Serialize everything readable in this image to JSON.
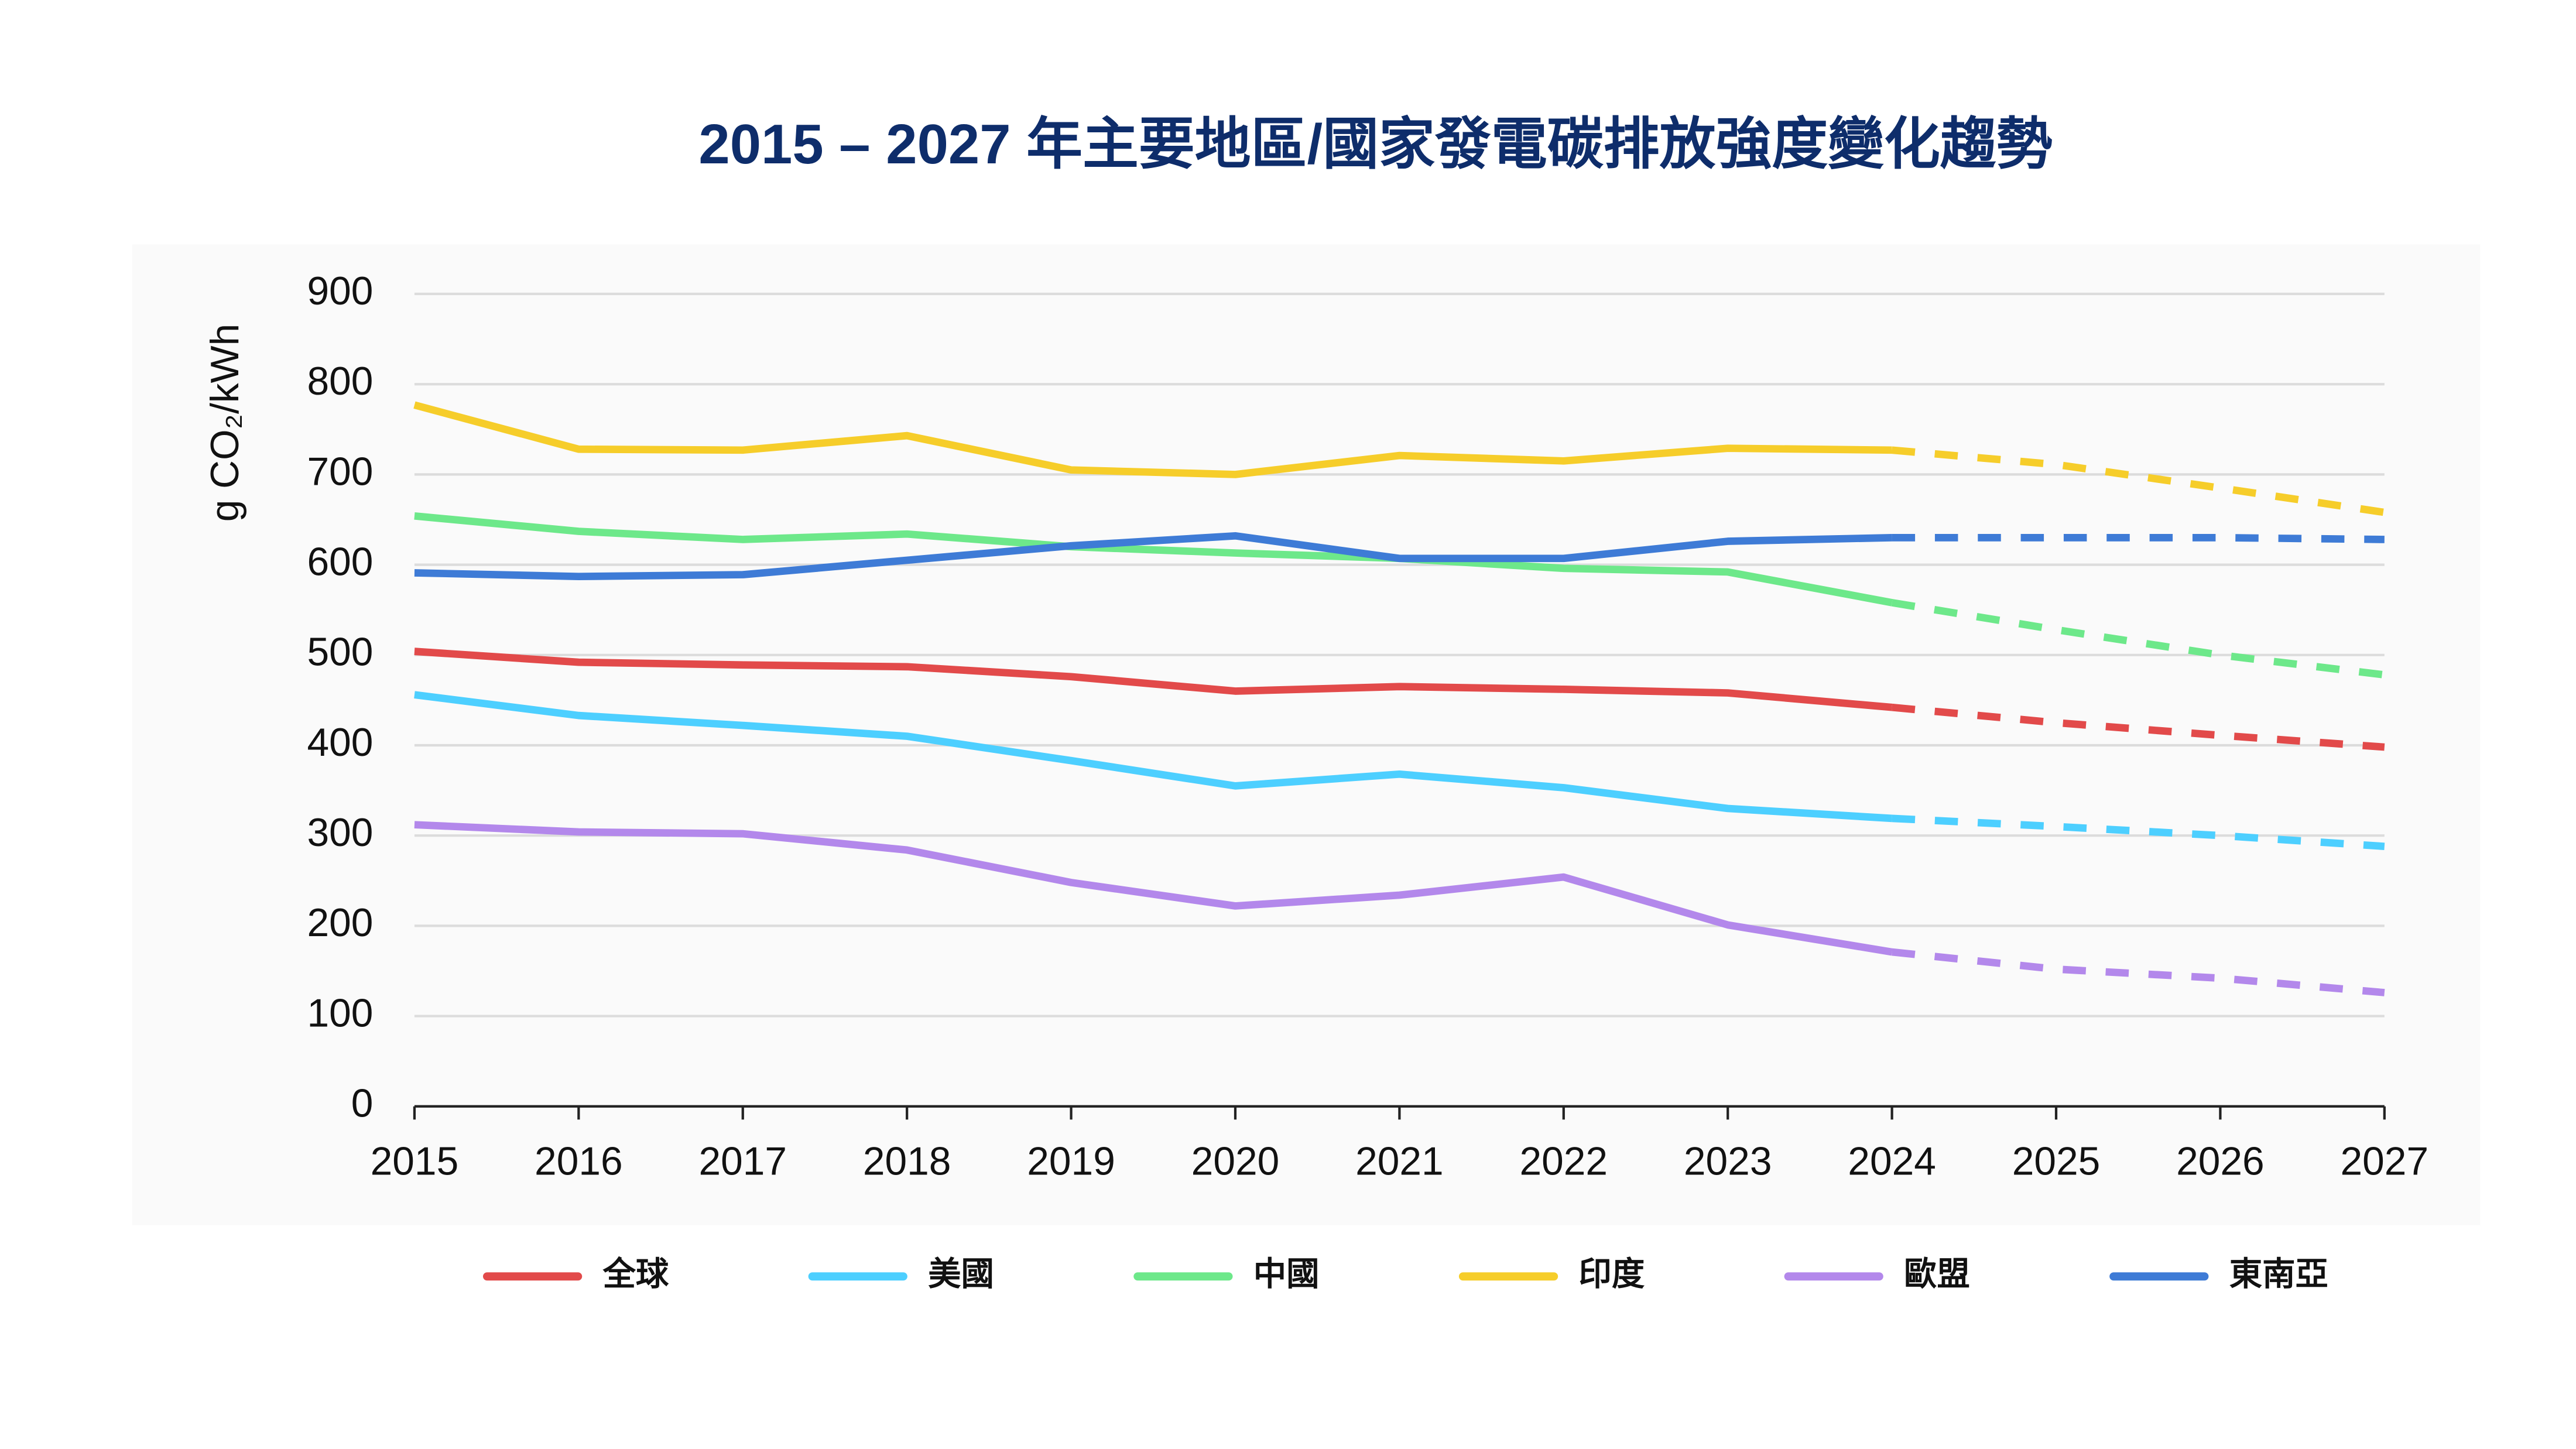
{
  "chart_data": {
    "type": "line",
    "title": "2015 – 2027 年主要地區/國家發電碳排放強度變化趨勢",
    "y_label": "g CO₂/kWh",
    "x": [
      2015,
      2016,
      2017,
      2018,
      2019,
      2020,
      2021,
      2022,
      2023,
      2024,
      2025,
      2026,
      2027
    ],
    "forecast_from": 2024,
    "xlim": [
      2015,
      2027
    ],
    "xticks": [
      2015,
      2016,
      2017,
      2018,
      2019,
      2020,
      2021,
      2022,
      2023,
      2024,
      2025,
      2026,
      2027
    ],
    "ylim": [
      0,
      900
    ],
    "yticks": [
      0,
      100,
      200,
      300,
      400,
      500,
      600,
      700,
      800,
      900
    ],
    "grid": true,
    "legend": "bottom",
    "series": [
      {
        "name": "全球",
        "color": "#e24a4a",
        "values": [
          504,
          492,
          489,
          487,
          476,
          460,
          465,
          462,
          458,
          442,
          425,
          411,
          398
        ]
      },
      {
        "name": "美國",
        "color": "#4dcfff",
        "values": [
          456,
          433,
          422,
          410,
          383,
          355,
          368,
          353,
          330,
          319,
          310,
          300,
          288
        ]
      },
      {
        "name": "中國",
        "color": "#6de88a",
        "values": [
          654,
          637,
          628,
          634,
          620,
          613,
          607,
          596,
          592,
          558,
          528,
          500,
          478
        ]
      },
      {
        "name": "印度",
        "color": "#f6cd2a",
        "values": [
          777,
          728,
          727,
          743,
          705,
          700,
          721,
          715,
          729,
          727,
          711,
          685,
          658
        ]
      },
      {
        "name": "歐盟",
        "color": "#b388eb",
        "values": [
          312,
          304,
          302,
          284,
          248,
          222,
          234,
          254,
          201,
          171,
          152,
          142,
          126
        ]
      },
      {
        "name": "東南亞",
        "color": "#3e7bd6",
        "values": [
          591,
          587,
          589,
          605,
          621,
          632,
          607,
          607,
          626,
          630,
          630,
          630,
          628
        ]
      }
    ]
  }
}
